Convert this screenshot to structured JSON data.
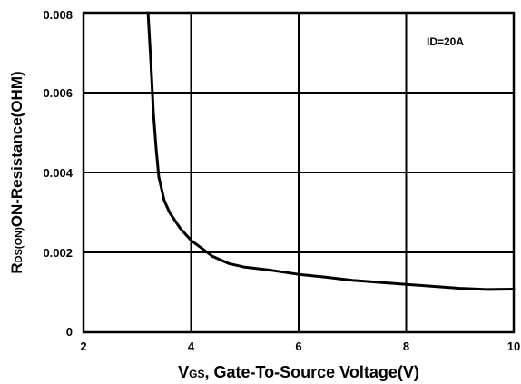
{
  "chart_data": {
    "type": "line",
    "title": "",
    "xlabel": {
      "sym_main": "V",
      "sym_sub": "GS",
      "text": ", Gate-To-Source Voltage(V)"
    },
    "ylabel": {
      "sym_main": "R",
      "sym_sub": "DS(ON)",
      "text": "ON-Resistance(OHM)"
    },
    "xlim": [
      2,
      10
    ],
    "ylim": [
      0,
      0.008
    ],
    "x_ticks": [
      "2",
      "4",
      "6",
      "8",
      "10"
    ],
    "y_ticks": [
      "0",
      "0.002",
      "0.004",
      "0.006",
      "0.008"
    ],
    "grid": true,
    "annotations": [
      {
        "text": "ID=20A",
        "position": "top-right"
      }
    ],
    "series": [
      {
        "points": [
          [
            3.2,
            0.0081
          ],
          [
            3.25,
            0.0068
          ],
          [
            3.3,
            0.0055
          ],
          [
            3.35,
            0.0046
          ],
          [
            3.4,
            0.0039
          ],
          [
            3.5,
            0.0033
          ],
          [
            3.6,
            0.003
          ],
          [
            3.8,
            0.0026
          ],
          [
            4.0,
            0.0023
          ],
          [
            4.2,
            0.0021
          ],
          [
            4.4,
            0.0019
          ],
          [
            4.7,
            0.00172
          ],
          [
            5.0,
            0.00163
          ],
          [
            5.5,
            0.00155
          ],
          [
            6.0,
            0.00145
          ],
          [
            6.5,
            0.00138
          ],
          [
            7.0,
            0.0013
          ],
          [
            7.5,
            0.00125
          ],
          [
            8.0,
            0.0012
          ],
          [
            8.5,
            0.00115
          ],
          [
            9.0,
            0.0011
          ],
          [
            9.5,
            0.00107
          ],
          [
            10.0,
            0.00108
          ]
        ]
      }
    ]
  }
}
